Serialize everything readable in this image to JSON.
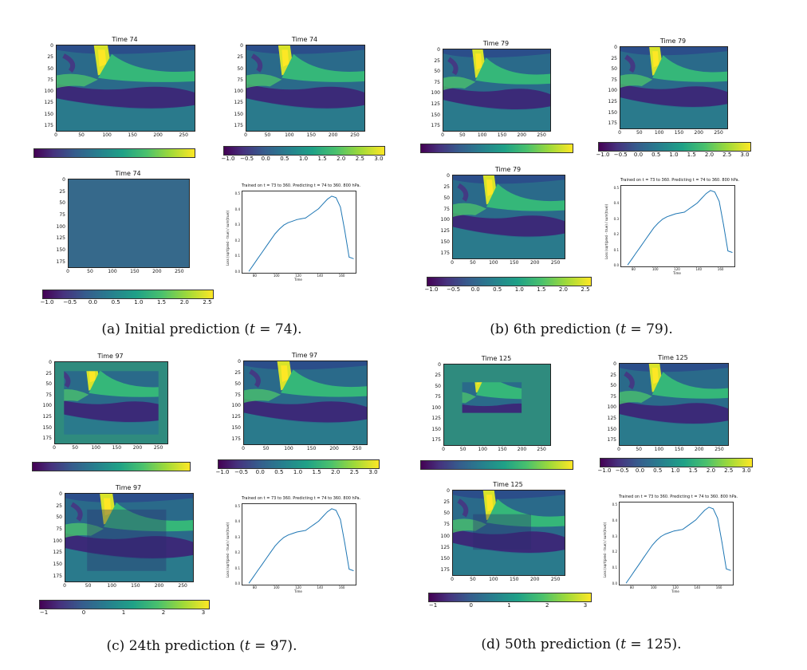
{
  "panels": [
    {
      "id": "a",
      "caption_main": "(a) Initial prediction (",
      "caption_var": "t",
      "caption_tail": " = 74).",
      "titles": {
        "pred": "Time 74",
        "truth": "Time 74",
        "diff": "Time 74"
      },
      "cb_truth": [
        "−1.0",
        "−0.5",
        "0.0",
        "0.5",
        "1.0",
        "1.5",
        "2.0",
        "2.5",
        "3.0"
      ],
      "cb_diff": [
        "−1.0",
        "−0.5",
        "0.0",
        "0.5",
        "1.0",
        "1.5",
        "2.0",
        "2.5"
      ],
      "loss_title": "Trained on t = 73 to 360. Predicting t = 74 to 360. 800 hPa."
    },
    {
      "id": "b",
      "caption_main": "(b) 6th prediction (",
      "caption_var": "t",
      "caption_tail": " = 79).",
      "titles": {
        "pred": "Time 79",
        "truth": "Time 79",
        "diff": "Time 79"
      },
      "cb_truth": [
        "−1.0",
        "−0.5",
        "0.0",
        "0.5",
        "1.0",
        "1.5",
        "2.0",
        "2.5",
        "3.0"
      ],
      "cb_diff": [
        "−1.0",
        "−0.5",
        "0.0",
        "0.5",
        "1.0",
        "1.5",
        "2.0",
        "2.5"
      ],
      "loss_title": "Trained on t = 73 to 360. Predicting t = 74 to 360. 800 hPa."
    },
    {
      "id": "c",
      "caption_main": "(c) 24th prediction (",
      "caption_var": "t",
      "caption_tail": " = 97).",
      "titles": {
        "pred": "Time 97",
        "truth": "Time 97",
        "diff": "Time 97"
      },
      "cb_truth": [
        "−1.0",
        "−0.5",
        "0.0",
        "0.5",
        "1.0",
        "1.5",
        "2.0",
        "2.5",
        "3.0"
      ],
      "cb_diff": [
        "−1",
        "0",
        "1",
        "2",
        "3"
      ],
      "loss_title": "Trained on t = 73 to 360. Predicting t = 74 to 360. 800 hPa."
    },
    {
      "id": "d",
      "caption_main": "(d) 50th prediction (",
      "caption_var": "t",
      "caption_tail": " = 125).",
      "titles": {
        "pred": "Time 125",
        "truth": "Time 125",
        "diff": "Time 125"
      },
      "cb_truth": [
        "−1.0",
        "−0.5",
        "0.0",
        "0.5",
        "1.0",
        "1.5",
        "2.0",
        "2.5",
        "3.0"
      ],
      "cb_diff": [
        "−1",
        "0",
        "1",
        "2",
        "3"
      ],
      "loss_title": "Trained on t = 73 to 360. Predicting t = 74 to 360. 800 hPa."
    }
  ],
  "axes": {
    "yticks": [
      "0",
      "25",
      "50",
      "75",
      "100",
      "125",
      "150",
      "175"
    ],
    "xticks": [
      "0",
      "50",
      "100",
      "150",
      "200",
      "250"
    ],
    "loss_yticks": [
      "0.5",
      "0.4",
      "0.3",
      "0.2",
      "0.1",
      "0.0"
    ],
    "loss_xticks": [
      "80",
      "100",
      "120",
      "140",
      "160"
    ],
    "loss_xlabel": "Time",
    "loss_ylabel": "Loss (sqrt(pred - true) / sum(true))"
  },
  "chart_data": {
    "type": "line",
    "x": [
      74,
      78,
      82,
      86,
      90,
      94,
      98,
      102,
      106,
      110,
      114,
      118,
      122,
      126,
      130,
      134,
      138,
      142,
      146,
      150,
      154,
      158,
      162,
      166,
      170
    ],
    "y": [
      0.01,
      0.05,
      0.09,
      0.13,
      0.17,
      0.21,
      0.25,
      0.28,
      0.305,
      0.32,
      0.33,
      0.34,
      0.345,
      0.35,
      0.37,
      0.39,
      0.41,
      0.44,
      0.47,
      0.49,
      0.48,
      0.42,
      0.27,
      0.1,
      0.09
    ],
    "xlim": [
      68,
      172
    ],
    "ylim": [
      0,
      0.52
    ]
  },
  "colors": {
    "viridis_dark": "#440154",
    "viridis_mid": "#21918c",
    "viridis_yellow": "#fde725",
    "line": "#1f77b4"
  }
}
